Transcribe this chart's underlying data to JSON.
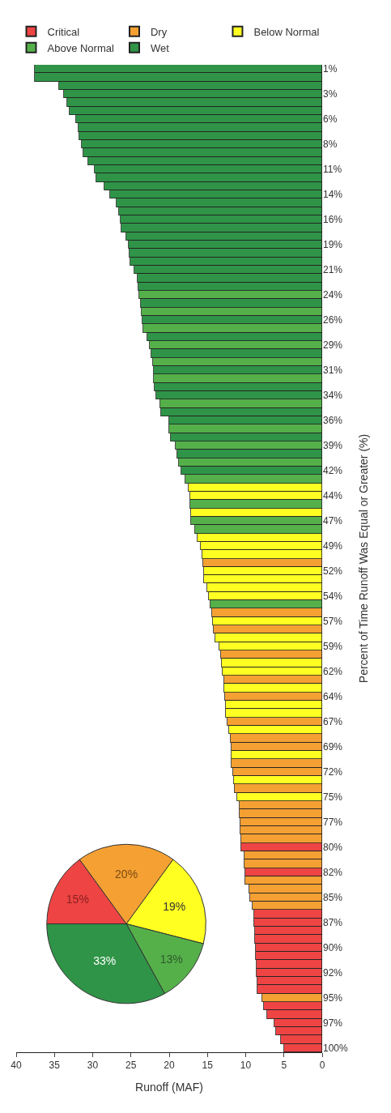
{
  "chart_data": [
    {
      "type": "bar",
      "orientation": "horizontal",
      "stacked": true,
      "xlabel": "Runoff (MAF)",
      "ylabel": "Percent of Time Runoff Was Equal or Greater (%)",
      "categories": [
        "1%",
        null,
        null,
        "3%",
        null,
        null,
        "6%",
        null,
        null,
        "8%",
        null,
        null,
        "11%",
        null,
        null,
        "14%",
        null,
        null,
        "16%",
        null,
        null,
        "19%",
        null,
        null,
        "21%",
        null,
        null,
        "24%",
        null,
        null,
        "26%",
        null,
        null,
        "29%",
        null,
        null,
        "31%",
        null,
        null,
        "34%",
        null,
        null,
        "36%",
        null,
        null,
        "39%",
        null,
        null,
        "42%",
        null,
        null,
        "44%",
        null,
        null,
        "47%",
        null,
        null,
        "49%",
        null,
        null,
        "52%",
        null,
        null,
        "54%",
        null,
        null,
        "57%",
        null,
        null,
        "59%",
        null,
        null,
        "62%",
        null,
        null,
        "64%",
        null,
        null,
        "67%",
        null,
        null,
        "69%",
        null,
        null,
        "72%",
        null,
        null,
        "75%",
        null,
        null,
        "77%",
        null,
        null,
        "80%",
        null,
        null,
        "82%",
        null,
        null,
        "85%",
        null,
        null,
        "87%",
        null,
        null,
        "90%",
        null,
        null,
        "92%",
        null,
        null,
        "95%",
        null,
        null,
        "97%",
        null,
        null,
        "100%"
      ],
      "xlim": [
        40,
        0
      ],
      "xticks": [
        0,
        5,
        10,
        15,
        20,
        25,
        30,
        35,
        40
      ],
      "legend": "top",
      "series": [
        {
          "name": "Critical",
          "color": "#ee4444",
          "values": [
            null,
            null,
            null,
            null,
            null,
            null,
            null,
            null,
            null,
            null,
            null,
            null,
            null,
            null,
            null,
            null,
            null,
            null,
            null,
            null,
            null,
            null,
            null,
            null,
            null,
            null,
            null,
            null,
            null,
            null,
            null,
            null,
            null,
            null,
            null,
            null,
            null,
            null,
            null,
            null,
            null,
            null,
            null,
            null,
            null,
            null,
            null,
            null,
            null,
            null,
            null,
            null,
            null,
            null,
            null,
            null,
            null,
            null,
            null,
            null,
            null,
            null,
            null,
            null,
            null,
            null,
            null,
            null,
            null,
            null,
            null,
            null,
            null,
            null,
            null,
            null,
            null,
            null,
            null,
            null,
            null,
            null,
            null,
            null,
            null,
            null,
            null,
            null,
            null,
            null,
            null,
            null,
            null,
            10.6,
            null,
            null,
            10.1,
            null,
            null,
            null,
            null,
            8.9,
            8.9,
            8.8,
            8.8,
            8.7,
            8.7,
            8.6,
            8.6,
            8.5,
            8.5,
            null,
            7.6,
            7.2,
            6.2,
            6.0,
            5.4,
            5.0
          ]
        },
        {
          "name": "Dry",
          "color": "#f5a033",
          "values": [
            null,
            null,
            null,
            null,
            null,
            null,
            null,
            null,
            null,
            null,
            null,
            null,
            null,
            null,
            null,
            null,
            null,
            null,
            null,
            null,
            null,
            null,
            null,
            null,
            null,
            null,
            null,
            null,
            null,
            null,
            null,
            null,
            null,
            null,
            null,
            null,
            null,
            null,
            null,
            null,
            null,
            null,
            null,
            null,
            null,
            null,
            null,
            null,
            null,
            null,
            null,
            null,
            null,
            null,
            null,
            null,
            null,
            null,
            null,
            15.6,
            null,
            null,
            null,
            null,
            null,
            14.4,
            null,
            14.2,
            null,
            null,
            13.2,
            null,
            null,
            12.8,
            null,
            12.7,
            null,
            null,
            12.4,
            null,
            12.0,
            11.9,
            null,
            11.9,
            11.6,
            null,
            11.4,
            null,
            10.8,
            10.8,
            10.7,
            10.7,
            10.6,
            null,
            10.2,
            10.2,
            null,
            10.1,
            9.5,
            9.4,
            9.1,
            null,
            null,
            null,
            null,
            null,
            null,
            null,
            null,
            null,
            null,
            7.8,
            null,
            null,
            null,
            null,
            null,
            null
          ]
        },
        {
          "name": "Below Normal",
          "color": "#ffff22",
          "values": [
            null,
            null,
            null,
            null,
            null,
            null,
            null,
            null,
            null,
            null,
            null,
            null,
            null,
            null,
            null,
            null,
            null,
            null,
            null,
            null,
            null,
            null,
            null,
            null,
            null,
            null,
            null,
            null,
            null,
            null,
            null,
            null,
            null,
            null,
            null,
            null,
            null,
            null,
            null,
            null,
            null,
            null,
            null,
            null,
            null,
            null,
            null,
            null,
            null,
            null,
            17.5,
            17.3,
            null,
            17.1,
            null,
            null,
            16.3,
            15.9,
            15.7,
            null,
            15.5,
            15.4,
            15.0,
            14.8,
            null,
            null,
            14.3,
            null,
            14.0,
            13.4,
            null,
            13.1,
            13.0,
            null,
            12.8,
            null,
            12.6,
            12.6,
            null,
            12.2,
            null,
            null,
            11.9,
            null,
            null,
            11.5,
            null,
            11.1,
            null,
            null,
            null,
            null,
            null,
            null,
            null,
            null,
            null,
            null,
            null,
            null,
            null,
            null,
            null,
            null,
            null,
            null,
            null,
            null,
            null,
            null,
            null,
            null,
            null,
            null,
            null,
            null,
            null,
            null
          ]
        },
        {
          "name": "Above Normal",
          "color": "#55b04a",
          "values": [
            null,
            null,
            null,
            null,
            null,
            null,
            null,
            null,
            null,
            null,
            null,
            null,
            null,
            null,
            null,
            null,
            null,
            null,
            null,
            null,
            null,
            null,
            null,
            null,
            null,
            null,
            null,
            23.9,
            null,
            23.6,
            null,
            23.4,
            null,
            22.5,
            null,
            22.1,
            null,
            22.0,
            null,
            null,
            21.2,
            null,
            null,
            20.0,
            null,
            19.2,
            null,
            18.7,
            null,
            17.9,
            null,
            null,
            17.2,
            null,
            17.1,
            16.6,
            null,
            null,
            null,
            null,
            null,
            null,
            null,
            null,
            14.6,
            null,
            null,
            null,
            null,
            null,
            null,
            null,
            null,
            null,
            null,
            null,
            null,
            null,
            null,
            null,
            null,
            null,
            null,
            null,
            null,
            null,
            null,
            null,
            null,
            null,
            null,
            null,
            null,
            null,
            null,
            null,
            null,
            null,
            null,
            null,
            null,
            null,
            null,
            null,
            null,
            null,
            null,
            null,
            null,
            null,
            null,
            null,
            null,
            null,
            null,
            null,
            null,
            null
          ]
        },
        {
          "name": "Wet",
          "color": "#2f9447",
          "values": [
            37.6,
            37.6,
            34.4,
            33.8,
            33.3,
            33.0,
            32.2,
            31.9,
            31.7,
            31.4,
            31.2,
            30.6,
            29.7,
            29.5,
            28.5,
            27.7,
            26.9,
            26.6,
            26.3,
            26.2,
            25.6,
            25.3,
            25.2,
            25.1,
            24.5,
            24.1,
            24.0,
            null,
            23.7,
            null,
            23.5,
            null,
            22.9,
            null,
            22.3,
            null,
            22.0,
            null,
            21.9,
            21.7,
            null,
            21.1,
            20.0,
            null,
            19.8,
            null,
            18.9,
            null,
            18.4,
            null,
            null,
            null,
            null,
            null,
            null,
            null,
            null,
            null,
            null,
            null,
            null,
            null,
            null,
            null,
            null,
            null,
            null,
            null,
            null,
            null,
            null,
            null,
            null,
            null,
            null,
            null,
            null,
            null,
            null,
            null,
            null,
            null,
            null,
            null,
            null,
            null,
            null,
            null,
            null,
            null,
            null,
            null,
            null,
            null,
            null,
            null,
            null,
            null,
            null,
            null,
            null,
            null,
            null,
            null,
            null,
            null,
            null,
            null,
            null,
            null,
            null,
            null,
            null,
            null,
            null,
            null,
            null,
            null
          ]
        }
      ]
    },
    {
      "type": "pie",
      "values": [
        15,
        20,
        19,
        13,
        33
      ],
      "colors": [
        "#ee4444",
        "#f5a033",
        "#ffff22",
        "#55b04a",
        "#2f9447"
      ],
      "value_labels": [
        "15%",
        "20%",
        "19%",
        "13%",
        "33%"
      ]
    }
  ]
}
